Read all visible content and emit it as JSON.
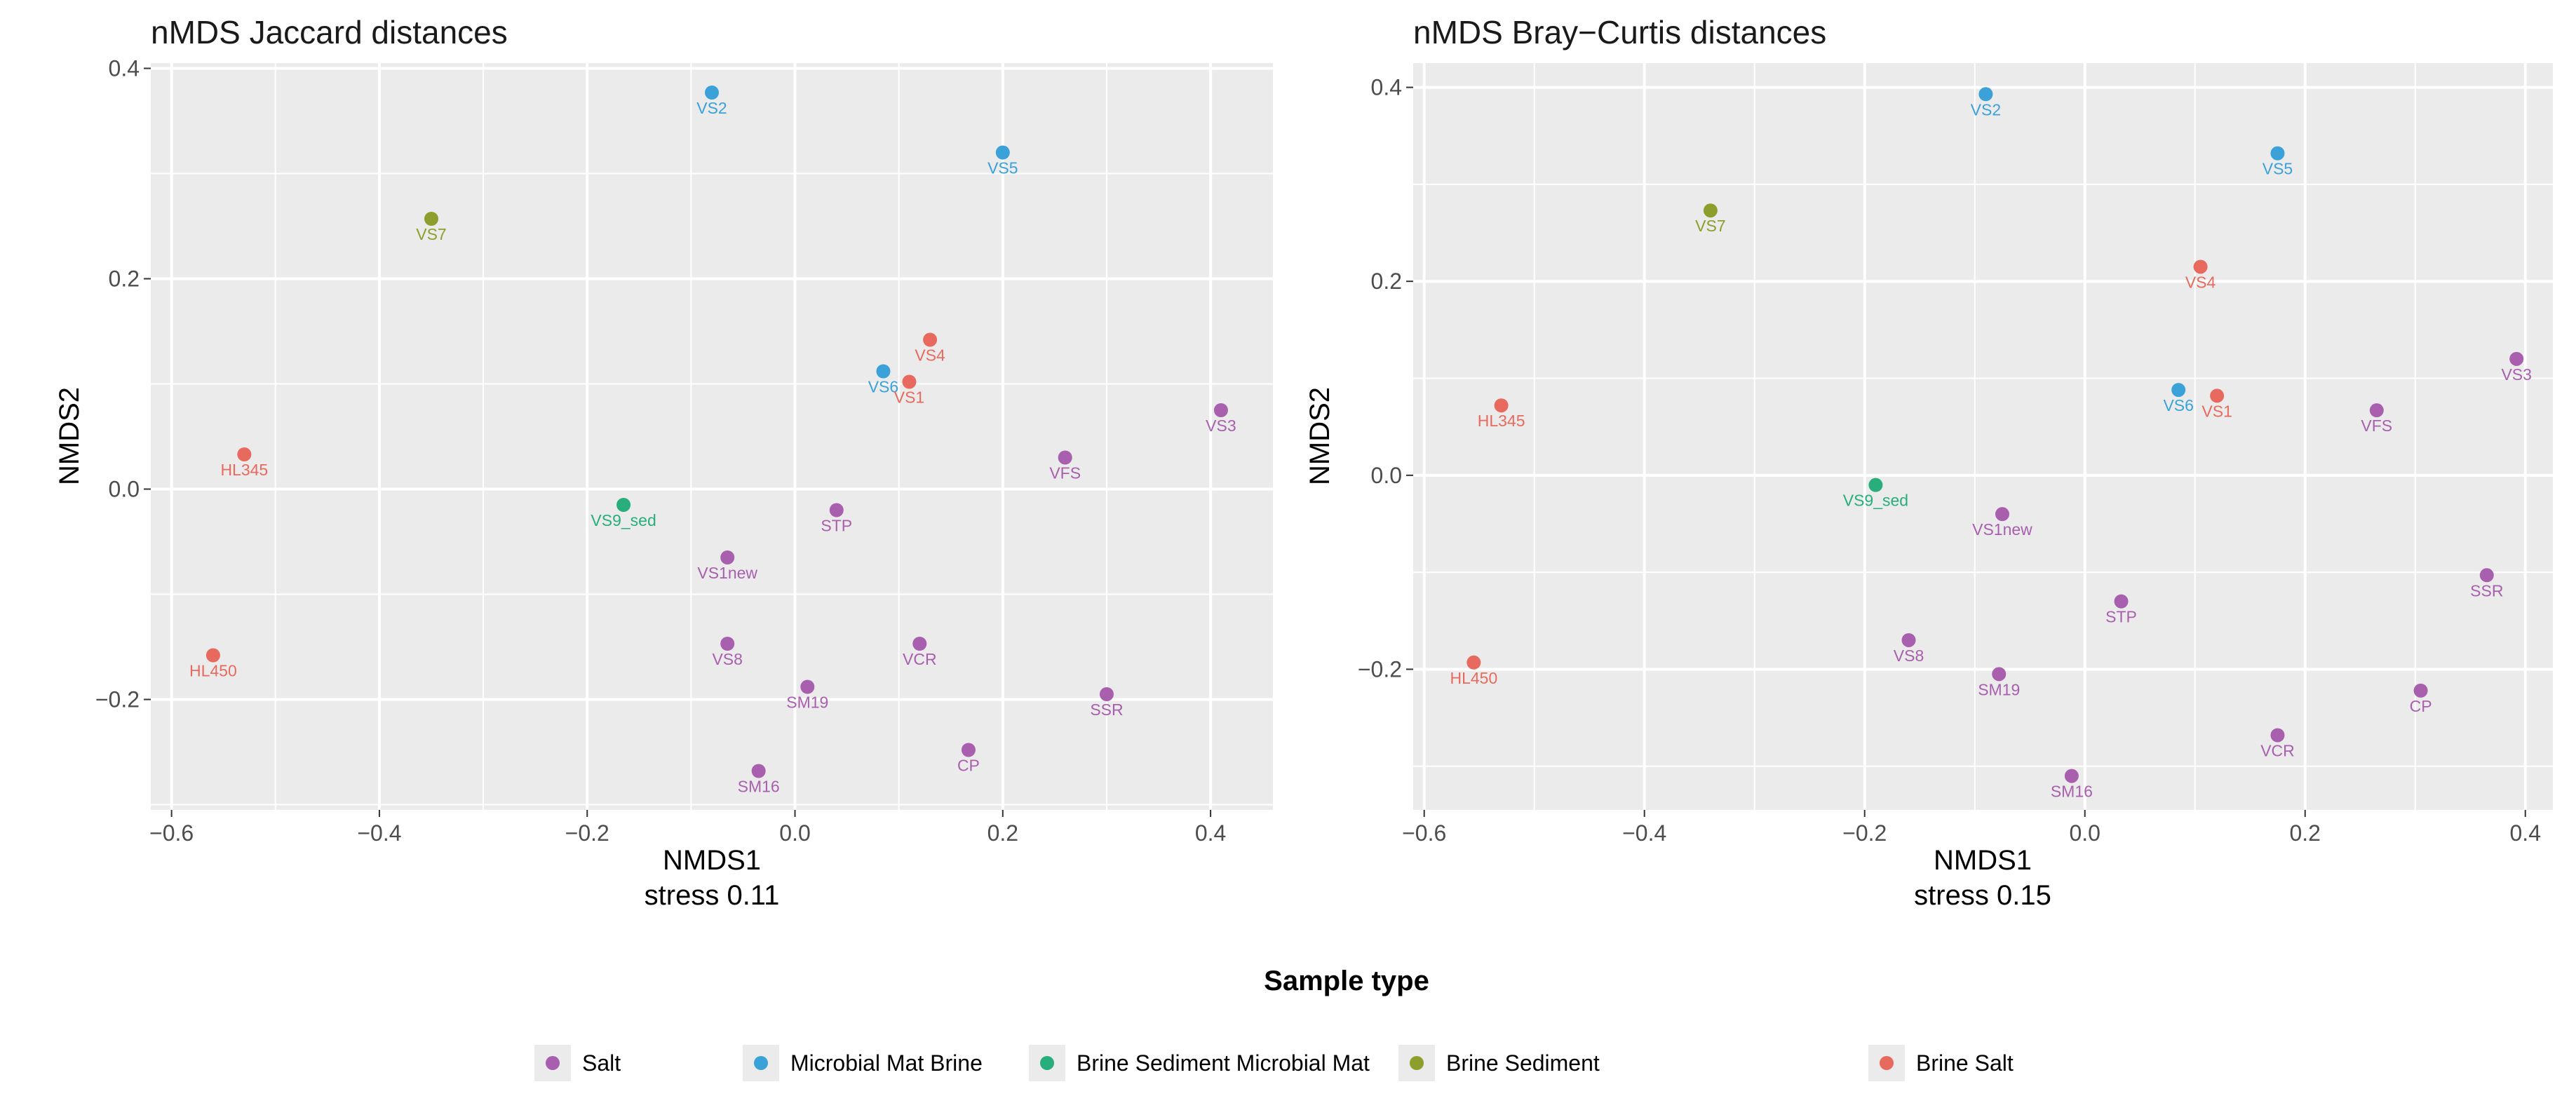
{
  "chart_data": [
    {
      "type": "scatter",
      "title": "nMDS Jaccard distances",
      "xlabel": "NMDS1",
      "xsublabel": "stress 0.11",
      "ylabel": "NMDS2",
      "xlim": [
        -0.62,
        0.46
      ],
      "ylim": [
        -0.305,
        0.405
      ],
      "xticks": [
        -0.6,
        -0.4,
        -0.2,
        0.0,
        0.2,
        0.4
      ],
      "xtick_labels": [
        "−0.6",
        "−0.4",
        "−0.2",
        "0.0",
        "0.2",
        "0.4"
      ],
      "yticks": [
        -0.2,
        0.0,
        0.2,
        0.4
      ],
      "ytick_labels": [
        "−0.2",
        "0.0",
        "0.2",
        "0.4"
      ],
      "grid": true,
      "points": [
        {
          "label": "VS2",
          "x": -0.08,
          "y": 0.377,
          "group": "Microbial Mat Brine"
        },
        {
          "label": "VS5",
          "x": 0.2,
          "y": 0.32,
          "group": "Microbial Mat Brine"
        },
        {
          "label": "VS7",
          "x": -0.35,
          "y": 0.257,
          "group": "Brine Sediment"
        },
        {
          "label": "VS4",
          "x": 0.13,
          "y": 0.142,
          "group": "Brine Salt"
        },
        {
          "label": "VS6",
          "x": 0.085,
          "y": 0.112,
          "group": "Microbial Mat Brine"
        },
        {
          "label": "VS1",
          "x": 0.11,
          "y": 0.102,
          "group": "Brine Salt"
        },
        {
          "label": "VS3",
          "x": 0.41,
          "y": 0.075,
          "group": "Salt"
        },
        {
          "label": "VFS",
          "x": 0.26,
          "y": 0.03,
          "group": "Salt"
        },
        {
          "label": "HL345",
          "x": -0.53,
          "y": 0.033,
          "group": "Brine Salt"
        },
        {
          "label": "VS9_sed",
          "x": -0.165,
          "y": -0.015,
          "group": "Brine Sediment Microbial Mat"
        },
        {
          "label": "STP",
          "x": 0.04,
          "y": -0.02,
          "group": "Salt"
        },
        {
          "label": "VS1new",
          "x": -0.065,
          "y": -0.065,
          "group": "Salt"
        },
        {
          "label": "VS8",
          "x": -0.065,
          "y": -0.147,
          "group": "Salt"
        },
        {
          "label": "VCR",
          "x": 0.12,
          "y": -0.147,
          "group": "Salt"
        },
        {
          "label": "HL450",
          "x": -0.56,
          "y": -0.158,
          "group": "Brine Salt"
        },
        {
          "label": "SM19",
          "x": 0.012,
          "y": -0.188,
          "group": "Salt"
        },
        {
          "label": "SSR",
          "x": 0.3,
          "y": -0.195,
          "group": "Salt"
        },
        {
          "label": "CP",
          "x": 0.167,
          "y": -0.248,
          "group": "Salt"
        },
        {
          "label": "SM16",
          "x": -0.035,
          "y": -0.268,
          "group": "Salt"
        }
      ]
    },
    {
      "type": "scatter",
      "title": "nMDS Bray−Curtis distances",
      "xlabel": "NMDS1",
      "xsublabel": "stress 0.15",
      "ylabel": "NMDS2",
      "xlim": [
        -0.61,
        0.425
      ],
      "ylim": [
        -0.345,
        0.425
      ],
      "xticks": [
        -0.6,
        -0.4,
        -0.2,
        0.0,
        0.2,
        0.4
      ],
      "xtick_labels": [
        "−0.6",
        "−0.4",
        "−0.2",
        "0.0",
        "0.2",
        "0.4"
      ],
      "yticks": [
        -0.2,
        0.0,
        0.2,
        0.4
      ],
      "ytick_labels": [
        "−0.2",
        "0.0",
        "0.2",
        "0.4"
      ],
      "grid": true,
      "points": [
        {
          "label": "VS2",
          "x": -0.09,
          "y": 0.393,
          "group": "Microbial Mat Brine"
        },
        {
          "label": "VS5",
          "x": 0.175,
          "y": 0.332,
          "group": "Microbial Mat Brine"
        },
        {
          "label": "VS7",
          "x": -0.34,
          "y": 0.273,
          "group": "Brine Sediment"
        },
        {
          "label": "VS4",
          "x": 0.105,
          "y": 0.215,
          "group": "Brine Salt"
        },
        {
          "label": "VS3",
          "x": 0.392,
          "y": 0.12,
          "group": "Salt"
        },
        {
          "label": "VS6",
          "x": 0.085,
          "y": 0.088,
          "group": "Microbial Mat Brine"
        },
        {
          "label": "VS1",
          "x": 0.12,
          "y": 0.082,
          "group": "Brine Salt"
        },
        {
          "label": "HL345",
          "x": -0.53,
          "y": 0.072,
          "group": "Brine Salt"
        },
        {
          "label": "VFS",
          "x": 0.265,
          "y": 0.067,
          "group": "Salt"
        },
        {
          "label": "VS9_sed",
          "x": -0.19,
          "y": -0.01,
          "group": "Brine Sediment Microbial Mat"
        },
        {
          "label": "VS1new",
          "x": -0.075,
          "y": -0.04,
          "group": "Salt"
        },
        {
          "label": "SSR",
          "x": 0.365,
          "y": -0.103,
          "group": "Salt"
        },
        {
          "label": "STP",
          "x": 0.033,
          "y": -0.13,
          "group": "Salt"
        },
        {
          "label": "VS8",
          "x": -0.16,
          "y": -0.17,
          "group": "Salt"
        },
        {
          "label": "HL450",
          "x": -0.555,
          "y": -0.193,
          "group": "Brine Salt"
        },
        {
          "label": "SM19",
          "x": -0.078,
          "y": -0.205,
          "group": "Salt"
        },
        {
          "label": "CP",
          "x": 0.305,
          "y": -0.222,
          "group": "Salt"
        },
        {
          "label": "VCR",
          "x": 0.175,
          "y": -0.268,
          "group": "Salt"
        },
        {
          "label": "SM16",
          "x": -0.012,
          "y": -0.31,
          "group": "Salt"
        }
      ]
    }
  ],
  "legend": {
    "title": "Sample type",
    "position": "bottom",
    "items": [
      {
        "label": "Salt",
        "color": "#A85FAE"
      },
      {
        "label": "Microbial Mat Brine",
        "color": "#3AA2D8"
      },
      {
        "label": "Brine Sediment Microbial Mat",
        "color": "#27AE7A"
      },
      {
        "label": "Brine Sediment",
        "color": "#8E9E2C"
      },
      {
        "label": "Brine Salt",
        "color": "#E86A5E"
      }
    ]
  },
  "style": {
    "panel_background": "#EBEBEB",
    "grid_color": "#FFFFFF"
  }
}
